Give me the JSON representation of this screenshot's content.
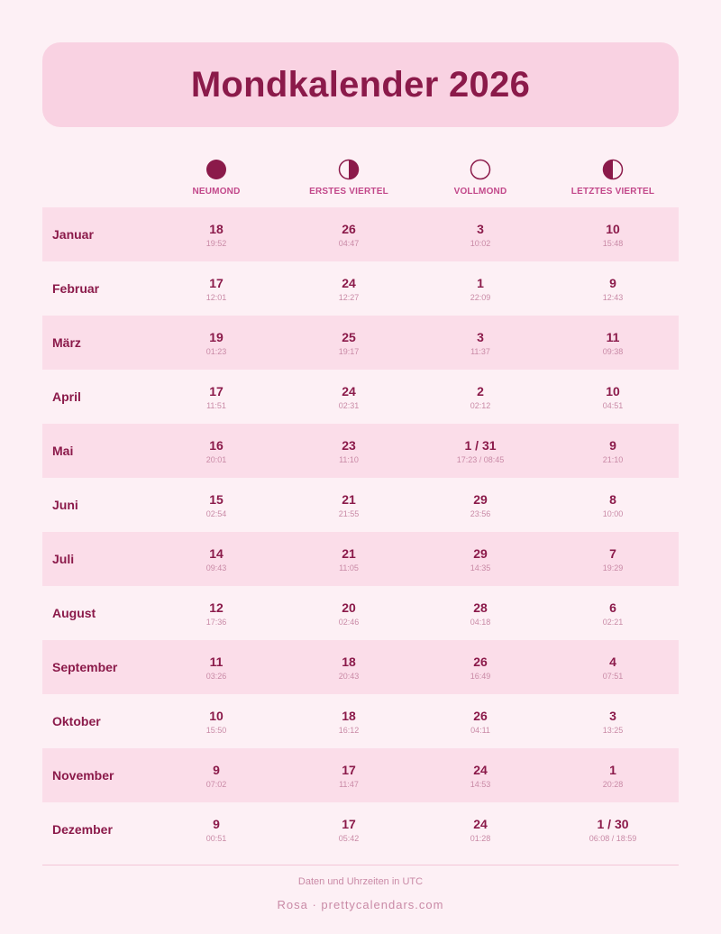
{
  "title": "Mondkalender 2026",
  "colors": {
    "accent": "#8b1a4a",
    "header_label": "#c2478a",
    "band": "#fbdde9",
    "title_bg": "#f9d2e2"
  },
  "phases": [
    {
      "label": "NEUMOND",
      "icon": "new-moon-icon"
    },
    {
      "label": "ERSTES VIERTEL",
      "icon": "first-quarter-icon"
    },
    {
      "label": "VOLLMOND",
      "icon": "full-moon-icon"
    },
    {
      "label": "LETZTES VIERTEL",
      "icon": "last-quarter-icon"
    }
  ],
  "rows": [
    {
      "month": "Januar",
      "cells": [
        {
          "day": "18",
          "time": "19:52"
        },
        {
          "day": "26",
          "time": "04:47"
        },
        {
          "day": "3",
          "time": "10:02"
        },
        {
          "day": "10",
          "time": "15:48"
        }
      ]
    },
    {
      "month": "Februar",
      "cells": [
        {
          "day": "17",
          "time": "12:01"
        },
        {
          "day": "24",
          "time": "12:27"
        },
        {
          "day": "1",
          "time": "22:09"
        },
        {
          "day": "9",
          "time": "12:43"
        }
      ]
    },
    {
      "month": "März",
      "cells": [
        {
          "day": "19",
          "time": "01:23"
        },
        {
          "day": "25",
          "time": "19:17"
        },
        {
          "day": "3",
          "time": "11:37"
        },
        {
          "day": "11",
          "time": "09:38"
        }
      ]
    },
    {
      "month": "April",
      "cells": [
        {
          "day": "17",
          "time": "11:51"
        },
        {
          "day": "24",
          "time": "02:31"
        },
        {
          "day": "2",
          "time": "02:12"
        },
        {
          "day": "10",
          "time": "04:51"
        }
      ]
    },
    {
      "month": "Mai",
      "cells": [
        {
          "day": "16",
          "time": "20:01"
        },
        {
          "day": "23",
          "time": "11:10"
        },
        {
          "day": "1 / 31",
          "time": "17:23 / 08:45"
        },
        {
          "day": "9",
          "time": "21:10"
        }
      ]
    },
    {
      "month": "Juni",
      "cells": [
        {
          "day": "15",
          "time": "02:54"
        },
        {
          "day": "21",
          "time": "21:55"
        },
        {
          "day": "29",
          "time": "23:56"
        },
        {
          "day": "8",
          "time": "10:00"
        }
      ]
    },
    {
      "month": "Juli",
      "cells": [
        {
          "day": "14",
          "time": "09:43"
        },
        {
          "day": "21",
          "time": "11:05"
        },
        {
          "day": "29",
          "time": "14:35"
        },
        {
          "day": "7",
          "time": "19:29"
        }
      ]
    },
    {
      "month": "August",
      "cells": [
        {
          "day": "12",
          "time": "17:36"
        },
        {
          "day": "20",
          "time": "02:46"
        },
        {
          "day": "28",
          "time": "04:18"
        },
        {
          "day": "6",
          "time": "02:21"
        }
      ]
    },
    {
      "month": "September",
      "cells": [
        {
          "day": "11",
          "time": "03:26"
        },
        {
          "day": "18",
          "time": "20:43"
        },
        {
          "day": "26",
          "time": "16:49"
        },
        {
          "day": "4",
          "time": "07:51"
        }
      ]
    },
    {
      "month": "Oktober",
      "cells": [
        {
          "day": "10",
          "time": "15:50"
        },
        {
          "day": "18",
          "time": "16:12"
        },
        {
          "day": "26",
          "time": "04:11"
        },
        {
          "day": "3",
          "time": "13:25"
        }
      ]
    },
    {
      "month": "November",
      "cells": [
        {
          "day": "9",
          "time": "07:02"
        },
        {
          "day": "17",
          "time": "11:47"
        },
        {
          "day": "24",
          "time": "14:53"
        },
        {
          "day": "1",
          "time": "20:28"
        }
      ]
    },
    {
      "month": "Dezember",
      "cells": [
        {
          "day": "9",
          "time": "00:51"
        },
        {
          "day": "17",
          "time": "05:42"
        },
        {
          "day": "24",
          "time": "01:28"
        },
        {
          "day": "1 / 30",
          "time": "06:08 / 18:59"
        }
      ]
    }
  ],
  "note": "Daten und Uhrzeiten in UTC",
  "footer": "Rosa · prettycalendars.com"
}
